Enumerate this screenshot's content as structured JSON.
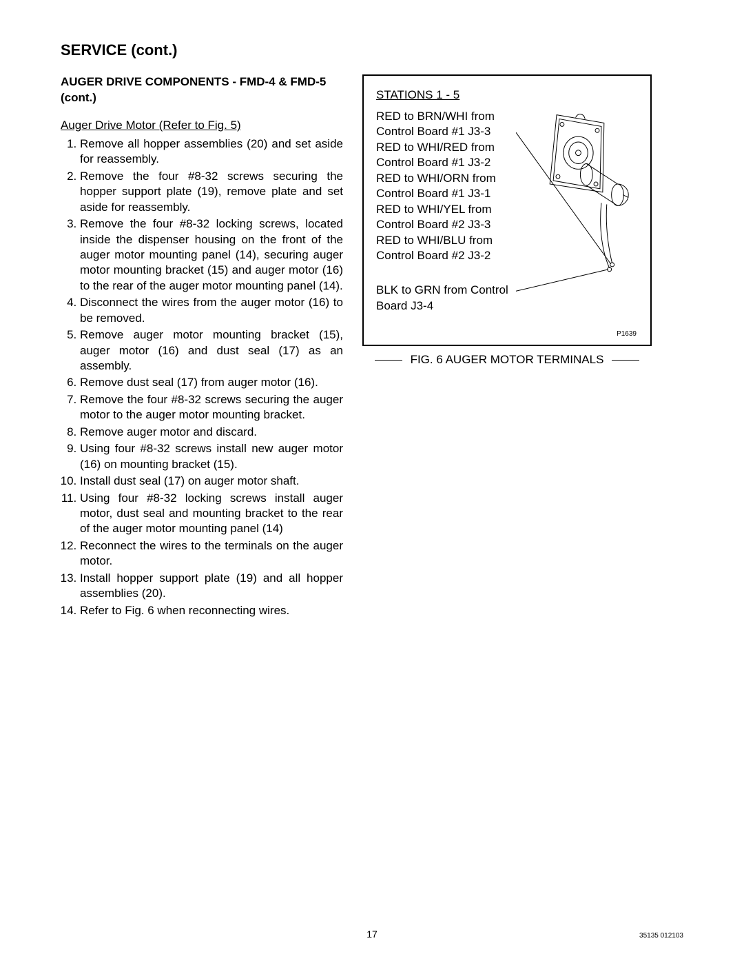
{
  "page_title": "SERVICE (cont.)",
  "section_title": "AUGER DRIVE COMPONENTS - FMD-4 & FMD-5 (cont.)",
  "sub_heading": "Auger Drive  Motor (Refer to Fig. 5)",
  "steps": [
    "Remove all hopper assemblies (20) and set aside for reassembly.",
    "Remove the four #8-32 screws securing the hopper support plate (19), remove plate and set aside for reassembly.",
    "Remove the four #8-32 locking screws, located inside the dispenser housing on the front of the auger motor mounting panel (14), securing auger motor mounting bracket (15) and auger motor (16) to the rear of the auger motor mounting panel (14).",
    "Disconnect the wires from the auger motor (16) to be removed.",
    "Remove auger motor mounting bracket (15), auger motor (16) and dust seal (17) as an assembly.",
    "Remove dust seal (17) from auger motor (16).",
    "Remove the four #8-32 screws securing the auger motor to the auger motor mounting bracket.",
    "Remove auger motor and discard.",
    "Using four #8-32 screws install new auger motor (16) on mounting bracket (15).",
    "Install dust seal (17) on auger motor shaft.",
    "Using four #8-32 locking screws install auger motor, dust seal and mounting bracket to the rear of the auger motor mounting panel (14)",
    "Reconnect the wires to the terminals on the auger motor.",
    "Install hopper support plate (19) and all hopper assemblies (20).",
    "Refer to Fig. 6 when reconnecting wires."
  ],
  "figure": {
    "heading": "STATIONS 1 - 5",
    "block1": "RED to BRN/WHI from Control Board #1 J3-3 RED to WHI/RED from Control Board #1 J3-2 RED to WHI/ORN from Control Board #1 J3-1 RED to WHI/YEL from Control Board #2 J3-3 RED to WHI/BLU from Control Board #2 J3-2",
    "block2": "BLK to GRN from Control Board J3-4",
    "part_no": "P1639",
    "caption": "FIG. 6 AUGER MOTOR TERMINALS",
    "stroke_color": "#000000",
    "stroke_width": 1
  },
  "footer": {
    "page_number": "17",
    "doc_code": "35135 012103"
  },
  "colors": {
    "background": "#ffffff",
    "text": "#000000",
    "border": "#000000"
  },
  "fonts": {
    "body_family": "Helvetica, Arial, sans-serif",
    "title_size_pt": 17,
    "body_size_pt": 13,
    "small_size_pt": 8
  }
}
